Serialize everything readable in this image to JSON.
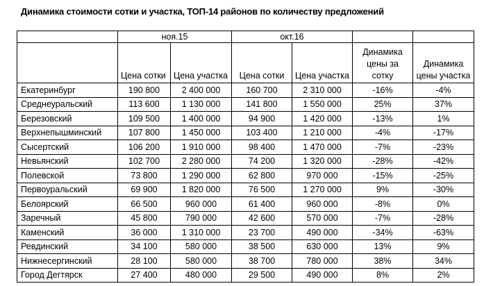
{
  "title": "Динамика стоимости сотки и участка, ТОП-14 районов по количеству предложений",
  "header": {
    "period1": "ноя.15",
    "period2": "окт.16",
    "columns": [
      "Цена сотки",
      "Цена участка",
      "Цена сотки",
      "Цена участка",
      "Динамика цены за сотку",
      "Динамика цены участка"
    ]
  },
  "rows": [
    [
      "Екатеринбург",
      "190 800",
      "2 400 000",
      "160 700",
      "2 310 000",
      "-16%",
      "-4%"
    ],
    [
      "Среднеуральский",
      "113 600",
      "1 130 000",
      "141 800",
      "1 550 000",
      "25%",
      "37%"
    ],
    [
      "Березовский",
      "109 500",
      "1 400 000",
      "94 900",
      "1 420 000",
      "-13%",
      "1%"
    ],
    [
      "Верхнепышминский",
      "107 800",
      "1 450 000",
      "103 400",
      "1 210 000",
      "-4%",
      "-17%"
    ],
    [
      "Сысертский",
      "106 200",
      "1 910 000",
      "98 400",
      "1 470 000",
      "-7%",
      "-23%"
    ],
    [
      "Невьянский",
      "102 700",
      "2 280 000",
      "74 200",
      "1 320 000",
      "-28%",
      "-42%"
    ],
    [
      "Полевской",
      "73 800",
      "1 290 000",
      "62 800",
      "970 000",
      "-15%",
      "-25%"
    ],
    [
      "Первоуральский",
      "69 900",
      "1 820 000",
      "76 500",
      "1 270 000",
      "9%",
      "-30%"
    ],
    [
      "Белоярский",
      "66 500",
      "960 000",
      "61 400",
      "960 000",
      "-8%",
      "0%"
    ],
    [
      "Заречный",
      "45 800",
      "790 000",
      "42 600",
      "570 000",
      "-7%",
      "-28%"
    ],
    [
      "Каменский",
      "36 000",
      "1 310 000",
      "23 700",
      "490 000",
      "-34%",
      "-63%"
    ],
    [
      "Ревдинский",
      "34 100",
      "580 000",
      "38 500",
      "630 000",
      "13%",
      "9%"
    ],
    [
      "Нижнесергинский",
      "28 100",
      "580 000",
      "38 700",
      "780 000",
      "38%",
      "34%"
    ],
    [
      "Город Дегтярск",
      "27 400",
      "480 000",
      "29 500",
      "490 000",
      "8%",
      "2%"
    ]
  ]
}
